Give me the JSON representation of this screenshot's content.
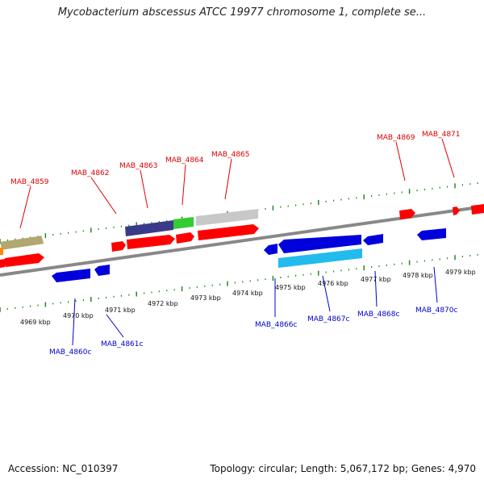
{
  "title": "Mycobacterium abscessus ATCC 19977 chromosome 1, complete se...",
  "accession": "Accession: NC_010397",
  "topology": "Topology: circular; Length: 5,067,172 bp; Genes: 4,970",
  "kbp_labels": [
    "4969 kbp",
    "4970 kbp",
    "4971 kbp",
    "4972 kbp",
    "4973 kbp",
    "4974 kbp",
    "4975 kbp",
    "4976 kbp",
    "4977 kbp",
    "4978 kbp",
    "4979 kbp"
  ],
  "forward_gene_labels": [
    "MAB_4859",
    "MAB_4862",
    "MAB_4863",
    "MAB_4864",
    "MAB_4865",
    "MAB_4869",
    "MAB_4871"
  ],
  "reverse_gene_labels": [
    "MAB_4860c",
    "MAB_4861c",
    "MAB_4866c",
    "MAB_4867c",
    "MAB_4868c",
    "MAB_4870c"
  ],
  "colors": {
    "forward_label": "#dd0000",
    "reverse_label": "#0000cc",
    "tick": "#228822",
    "backbone": "#888888",
    "gene_red": "#ff0000",
    "gene_blue": "#0000dd",
    "gene_cyan": "#22bbee",
    "gene_navy": "#3a3a8a",
    "gene_green": "#33cc33",
    "gene_grey": "#c8c8c8",
    "gene_olive": "#b0a870",
    "gene_orange": "#ff8800"
  }
}
